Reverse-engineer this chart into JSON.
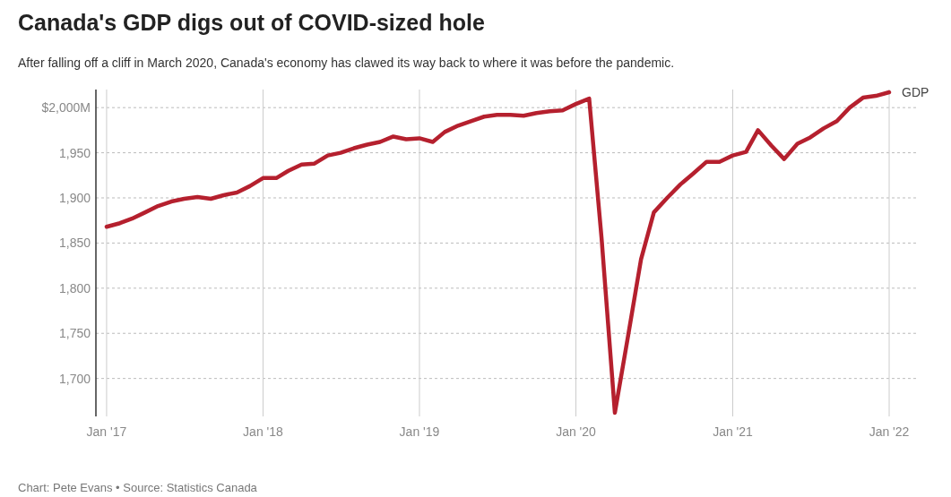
{
  "chart_data": {
    "type": "line",
    "title": "Canada's GDP digs out of COVID-sized hole",
    "subtitle": "After falling off a cliff in March 2020, Canada's economy has clawed its way back to where it was before the pandemic.",
    "x": [
      "2017-01",
      "2017-02",
      "2017-03",
      "2017-04",
      "2017-05",
      "2017-06",
      "2017-07",
      "2017-08",
      "2017-09",
      "2017-10",
      "2017-11",
      "2017-12",
      "2018-01",
      "2018-02",
      "2018-03",
      "2018-04",
      "2018-05",
      "2018-06",
      "2018-07",
      "2018-08",
      "2018-09",
      "2018-10",
      "2018-11",
      "2018-12",
      "2019-01",
      "2019-02",
      "2019-03",
      "2019-04",
      "2019-05",
      "2019-06",
      "2019-07",
      "2019-08",
      "2019-09",
      "2019-10",
      "2019-11",
      "2019-12",
      "2020-01",
      "2020-02",
      "2020-03",
      "2020-04",
      "2020-05",
      "2020-06",
      "2020-07",
      "2020-08",
      "2020-09",
      "2020-10",
      "2020-11",
      "2020-12",
      "2021-01",
      "2021-02",
      "2021-03",
      "2021-04",
      "2021-05",
      "2021-06",
      "2021-07",
      "2021-08",
      "2021-09",
      "2021-10",
      "2021-11",
      "2021-12",
      "2022-01"
    ],
    "series": [
      {
        "name": "GDP",
        "color": "#b5202e",
        "values": [
          1868,
          1872,
          1877,
          1884,
          1891,
          1896,
          1899,
          1901,
          1899,
          1903,
          1906,
          1913,
          1922,
          1922,
          1930,
          1937,
          1938,
          1947,
          1950,
          1955,
          1959,
          1962,
          1968,
          1965,
          1966,
          1962,
          1973,
          1980,
          1985,
          1990,
          1992,
          1992,
          1991,
          1994,
          1996,
          1997,
          2004,
          2010,
          1855,
          1662,
          1745,
          1832,
          1884,
          1900,
          1915,
          1927,
          1940,
          1940,
          1947,
          1951,
          1975,
          1958,
          1943,
          1960,
          1967,
          1977,
          1985,
          2000,
          2011,
          2013,
          2017
        ]
      }
    ],
    "xlim": [
      "2016-12-07",
      "2022-01-01"
    ],
    "xticks": [
      {
        "value": "2017-01",
        "label": "Jan '17"
      },
      {
        "value": "2018-01",
        "label": "Jan '18"
      },
      {
        "value": "2019-01",
        "label": "Jan '19"
      },
      {
        "value": "2020-01",
        "label": "Jan '20"
      },
      {
        "value": "2021-01",
        "label": "Jan '21"
      },
      {
        "value": "2022-01",
        "label": "Jan '22"
      }
    ],
    "ylim": [
      1658,
      2020
    ],
    "yticks": [
      {
        "value": 1700,
        "label": "1,700"
      },
      {
        "value": 1750,
        "label": "1,750"
      },
      {
        "value": 1800,
        "label": "1,800"
      },
      {
        "value": 1850,
        "label": "1,850"
      },
      {
        "value": 1900,
        "label": "1,900"
      },
      {
        "value": 1950,
        "label": "1,950"
      },
      {
        "value": 2000,
        "label": "$2,000M"
      }
    ],
    "grid": true,
    "line_style": "solid",
    "marker": "none",
    "annotations": [
      "Chart: Pete Evans • Source: Statistics Canada"
    ]
  }
}
